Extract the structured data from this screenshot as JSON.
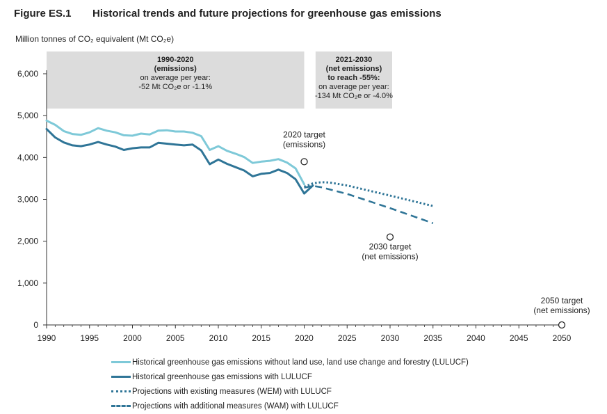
{
  "figure": {
    "label": "Figure ES.1",
    "title": "Historical trends and future projections for greenhouse gas emissions",
    "y_unit": "Million tonnes of CO₂ equivalent (Mt CO₂e)"
  },
  "colors": {
    "hist_no_lulucf": "#7ec9d8",
    "hist_lulucf": "#2f7597",
    "wem": "#2f7597",
    "wam": "#2f7597",
    "shade": "#dcdcdc",
    "axis": "#333333"
  },
  "chart_data": {
    "type": "line",
    "xlim": [
      1990,
      2050
    ],
    "ylim": [
      0,
      6000
    ],
    "x_ticks": [
      "1990",
      "1995",
      "2000",
      "2005",
      "2010",
      "2015",
      "2020",
      "2025",
      "2030",
      "2035",
      "2040",
      "2045",
      "2050"
    ],
    "y_ticks": [
      "0",
      "1,000",
      "2,000",
      "3,000",
      "4,000",
      "5,000",
      "6,000"
    ],
    "series": [
      {
        "name": "Historical greenhouse gas emissions without land use, land use change and forestry (LULUCF)",
        "style": "solid-light",
        "x": [
          1990,
          1991,
          1992,
          1993,
          1994,
          1995,
          1996,
          1997,
          1998,
          1999,
          2000,
          2001,
          2002,
          2003,
          2004,
          2005,
          2006,
          2007,
          2008,
          2009,
          2010,
          2011,
          2012,
          2013,
          2014,
          2015,
          2016,
          2017,
          2018,
          2019,
          2020
        ],
        "y": [
          4880,
          4780,
          4630,
          4560,
          4540,
          4600,
          4700,
          4640,
          4600,
          4530,
          4520,
          4570,
          4550,
          4640,
          4650,
          4620,
          4620,
          4590,
          4510,
          4180,
          4270,
          4160,
          4090,
          4010,
          3870,
          3900,
          3920,
          3960,
          3880,
          3740,
          3360
        ]
      },
      {
        "name": "Historical greenhouse gas emissions with LULUCF",
        "style": "solid-dark",
        "x": [
          1990,
          1991,
          1992,
          1993,
          1994,
          1995,
          1996,
          1997,
          1998,
          1999,
          2000,
          2001,
          2002,
          2003,
          2004,
          2005,
          2006,
          2007,
          2008,
          2009,
          2010,
          2011,
          2012,
          2013,
          2014,
          2015,
          2016,
          2017,
          2018,
          2019,
          2020,
          2021
        ],
        "y": [
          4680,
          4480,
          4360,
          4290,
          4270,
          4310,
          4370,
          4310,
          4260,
          4180,
          4220,
          4240,
          4240,
          4350,
          4330,
          4310,
          4290,
          4310,
          4170,
          3840,
          3950,
          3850,
          3770,
          3690,
          3550,
          3610,
          3630,
          3710,
          3630,
          3480,
          3140,
          3330
        ]
      },
      {
        "name": "Projections with existing measures (WEM) with LULUCF",
        "style": "dotted",
        "x": [
          2020,
          2021,
          2022,
          2023,
          2025,
          2030,
          2035
        ],
        "y": [
          3300,
          3380,
          3410,
          3400,
          3330,
          3090,
          2840
        ]
      },
      {
        "name": "Projections with additional measures (WAM) with LULUCF",
        "style": "dashed",
        "x": [
          2020,
          2021,
          2022,
          2025,
          2030,
          2035
        ],
        "y": [
          3280,
          3320,
          3290,
          3130,
          2790,
          2430
        ]
      }
    ],
    "targets": [
      {
        "label": "2020 target",
        "sub": "(emissions)",
        "x": 2020,
        "y": 3900
      },
      {
        "label": "2030 target",
        "sub": "(net emissions)",
        "x": 2030,
        "y": 2100
      },
      {
        "label": "2050 target",
        "sub": "(net emissions)",
        "x": 2050,
        "y": 0
      }
    ],
    "annotations": [
      {
        "x_from": 1990,
        "x_to": 2020,
        "title": "1990-2020",
        "subtitle": "(emissions)",
        "line1": "on average per year:",
        "line2": "-52 Mt CO₂e or -1.1%"
      },
      {
        "x_from": 2021,
        "x_to": 2030,
        "title": "2021-2030",
        "subtitle": "(net emissions)",
        "subtitle2": "to reach -55%:",
        "line1": "on average per year:",
        "line2": "-134 Mt CO₂e or -4.0%"
      }
    ],
    "legend_position": "bottom"
  }
}
